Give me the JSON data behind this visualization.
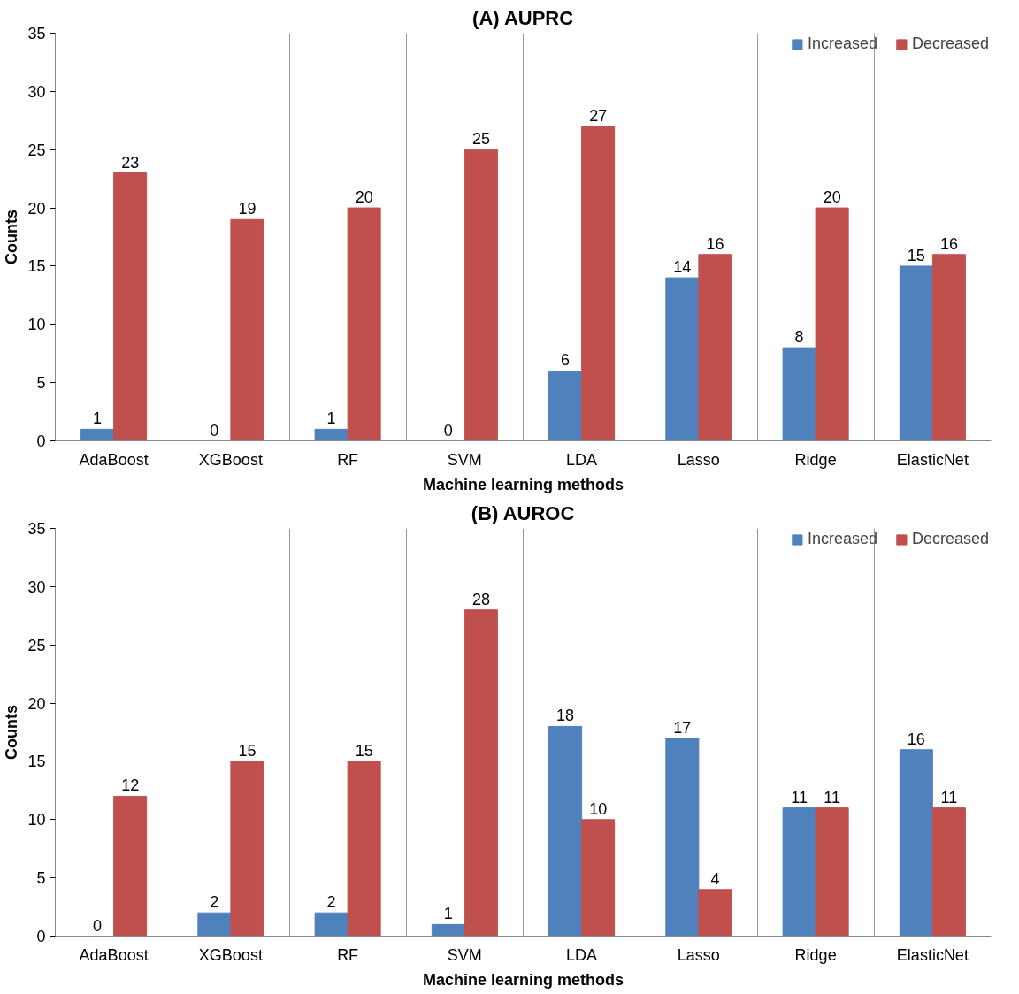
{
  "chart_data": [
    {
      "type": "bar",
      "title": "(A) AUPRC",
      "xlabel": "Machine learning methods",
      "ylabel": "Counts",
      "categories": [
        "AdaBoost",
        "XGBoost",
        "RF",
        "SVM",
        "LDA",
        "Lasso",
        "Ridge",
        "ElasticNet"
      ],
      "series": [
        {
          "name": "Increased",
          "color": "#4f81bd",
          "values": [
            1,
            0,
            1,
            0,
            6,
            14,
            8,
            15
          ]
        },
        {
          "name": "Decreased",
          "color": "#c0504d",
          "values": [
            23,
            19,
            20,
            25,
            27,
            16,
            20,
            16
          ]
        }
      ],
      "ylim": [
        0,
        35
      ],
      "yticks": [
        0,
        5,
        10,
        15,
        20,
        25,
        30,
        35
      ],
      "grid": "x",
      "legend": "top right",
      "data_labels": true
    },
    {
      "type": "bar",
      "title": "(B) AUROC",
      "xlabel": "Machine learning methods",
      "ylabel": "Counts",
      "categories": [
        "AdaBoost",
        "XGBoost",
        "RF",
        "SVM",
        "LDA",
        "Lasso",
        "Ridge",
        "ElasticNet"
      ],
      "series": [
        {
          "name": "Increased",
          "color": "#4f81bd",
          "values": [
            0,
            2,
            2,
            1,
            18,
            17,
            11,
            16
          ]
        },
        {
          "name": "Decreased",
          "color": "#c0504d",
          "values": [
            12,
            15,
            15,
            28,
            10,
            4,
            11,
            11
          ]
        }
      ],
      "ylim": [
        0,
        35
      ],
      "yticks": [
        0,
        5,
        10,
        15,
        20,
        25,
        30,
        35
      ],
      "grid": "x",
      "legend": "top right",
      "data_labels": true
    }
  ]
}
